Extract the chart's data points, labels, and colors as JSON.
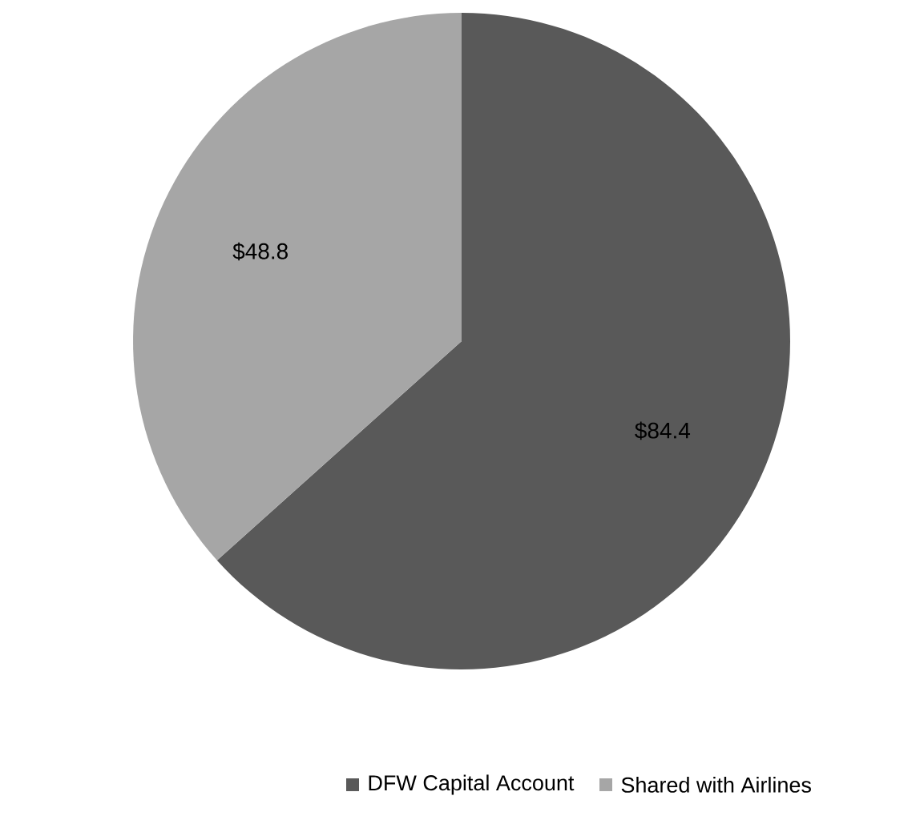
{
  "chart_data": {
    "type": "pie",
    "categories": [
      "DFW Capital Account",
      "Shared with Airlines"
    ],
    "values": [
      84.4,
      48.8
    ],
    "colors": [
      "#595959",
      "#a6a6a6"
    ],
    "value_labels": [
      "$84.4",
      "$48.8"
    ],
    "legend": "bottom"
  }
}
